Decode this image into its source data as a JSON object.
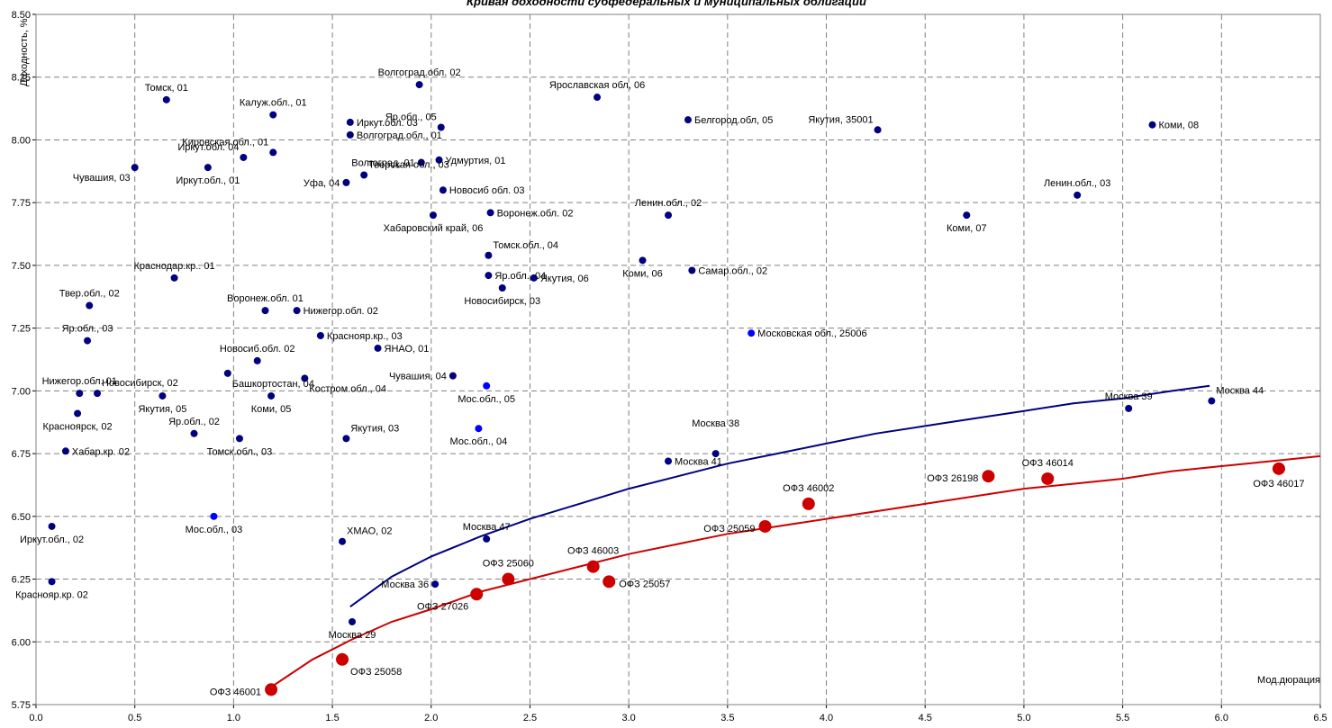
{
  "chart_data": {
    "type": "scatter",
    "title": "Кривая доходности субфедеральных и муниципальных облигаций",
    "ylabel": "Доходность, %",
    "xlabel": "Мод.дюрация",
    "xlim": [
      0,
      6.5
    ],
    "ylim": [
      5.75,
      8.5
    ],
    "x_ticks": [
      "0.0",
      "0.5",
      "1.0",
      "1.5",
      "2.0",
      "2.5",
      "3.0",
      "3.5",
      "4.0",
      "4.5",
      "5.0",
      "5.5",
      "6.0",
      "6.5"
    ],
    "y_ticks": [
      "5.75",
      "6.00",
      "6.25",
      "6.50",
      "6.75",
      "7.00",
      "7.25",
      "7.50",
      "7.75",
      "8.00",
      "8.25",
      "8.50"
    ],
    "grid": true,
    "colors": {
      "regional": "#000080",
      "moscow_region": "#0000ff",
      "ofz": "#cc0000",
      "regional_curve": "#000080",
      "ofz_curve": "#cc0000"
    },
    "series": [
      {
        "name": "regional",
        "points": [
          {
            "x": 0.66,
            "y": 8.16,
            "label": "Томск, 01",
            "pos": "above"
          },
          {
            "x": 1.94,
            "y": 8.22,
            "label": "Волгоград.обл. 02",
            "pos": "above"
          },
          {
            "x": 2.84,
            "y": 8.17,
            "label": "Ярославская обл, 06",
            "pos": "above"
          },
          {
            "x": 1.2,
            "y": 8.1,
            "label": "Калуж.обл., 01",
            "pos": "above"
          },
          {
            "x": 1.59,
            "y": 8.07,
            "label": "Иркут.обл. 03",
            "pos": "right"
          },
          {
            "x": 2.05,
            "y": 8.05,
            "label": "Яр.обл., 05",
            "pos": "aboveleft"
          },
          {
            "x": 3.3,
            "y": 8.08,
            "label": "Белгород.обл, 05",
            "pos": "right"
          },
          {
            "x": 4.26,
            "y": 8.04,
            "label": "Якутия, 35001",
            "pos": "aboveleft"
          },
          {
            "x": 5.65,
            "y": 8.06,
            "label": "Коми, 08",
            "pos": "right"
          },
          {
            "x": 1.59,
            "y": 8.02,
            "label": "Волгоград.обл., 01",
            "pos": "right"
          },
          {
            "x": 1.2,
            "y": 7.95,
            "label": "Кировская обл., 01",
            "pos": "aboveleft"
          },
          {
            "x": 1.05,
            "y": 7.93,
            "label": "Иркут.обл. 04",
            "pos": "aboveleft"
          },
          {
            "x": 0.5,
            "y": 7.89,
            "label": "Чувашия, 03",
            "pos": "belowleft"
          },
          {
            "x": 0.87,
            "y": 7.89,
            "label": "Иркут.обл., 01",
            "pos": "below"
          },
          {
            "x": 1.95,
            "y": 7.91,
            "label": "Волгоград, 01",
            "pos": "left"
          },
          {
            "x": 2.04,
            "y": 7.92,
            "label": "Удмуртия, 01",
            "pos": "right"
          },
          {
            "x": 1.66,
            "y": 7.86,
            "label": "Тверская обл., 03",
            "pos": "aboveright"
          },
          {
            "x": 1.57,
            "y": 7.83,
            "label": "Уфа, 04",
            "pos": "left"
          },
          {
            "x": 2.06,
            "y": 7.8,
            "label": "Новосиб обл. 03",
            "pos": "right"
          },
          {
            "x": 5.27,
            "y": 7.78,
            "label": "Ленин.обл., 03",
            "pos": "above"
          },
          {
            "x": 2.3,
            "y": 7.71,
            "label": "Воронеж.обл. 02",
            "pos": "right"
          },
          {
            "x": 2.01,
            "y": 7.7,
            "label": "Хабаровский край, 06",
            "pos": "below"
          },
          {
            "x": 3.2,
            "y": 7.7,
            "label": "Ленин.обл., 02",
            "pos": "above"
          },
          {
            "x": 4.71,
            "y": 7.7,
            "label": "Коми, 07",
            "pos": "below"
          },
          {
            "x": 2.29,
            "y": 7.54,
            "label": "Томск.обл., 04",
            "pos": "aboveright"
          },
          {
            "x": 3.07,
            "y": 7.52,
            "label": "Коми, 06",
            "pos": "below"
          },
          {
            "x": 3.32,
            "y": 7.48,
            "label": "Самар.обл., 02",
            "pos": "right"
          },
          {
            "x": 2.29,
            "y": 7.46,
            "label": "Яр.обл., 04",
            "pos": "right"
          },
          {
            "x": 2.52,
            "y": 7.45,
            "label": "Якутия, 06",
            "pos": "right"
          },
          {
            "x": 2.36,
            "y": 7.41,
            "label": "Новосибирск, 03",
            "pos": "below"
          },
          {
            "x": 0.7,
            "y": 7.45,
            "label": "Краснодар.кр.. 01",
            "pos": "above"
          },
          {
            "x": 0.27,
            "y": 7.34,
            "label": "Твер.обл., 02",
            "pos": "above"
          },
          {
            "x": 1.16,
            "y": 7.32,
            "label": "Воронеж.обл. 01",
            "pos": "above"
          },
          {
            "x": 1.32,
            "y": 7.32,
            "label": "Нижегор.обл. 02",
            "pos": "right"
          },
          {
            "x": 0.26,
            "y": 7.2,
            "label": "Яр.обл., 03",
            "pos": "above"
          },
          {
            "x": 1.44,
            "y": 7.22,
            "label": "Краснояр.кр., 03",
            "pos": "right"
          },
          {
            "x": 1.73,
            "y": 7.17,
            "label": "ЯНАО, 01",
            "pos": "right"
          },
          {
            "x": 1.12,
            "y": 7.12,
            "label": "Новосиб.обл. 02",
            "pos": "above"
          },
          {
            "x": 0.97,
            "y": 7.07,
            "label": "Башкортостан, 04",
            "pos": "belowright"
          },
          {
            "x": 1.36,
            "y": 7.05,
            "label": "Костром.обл., 04",
            "pos": "belowright"
          },
          {
            "x": 2.11,
            "y": 7.06,
            "label": "Чувашия, 04",
            "pos": "left"
          },
          {
            "x": 0.22,
            "y": 6.99,
            "label": "Нижегор.обл. 01",
            "pos": "above"
          },
          {
            "x": 0.31,
            "y": 6.99,
            "label": "Новосибирск, 02",
            "pos": "aboveright"
          },
          {
            "x": 0.64,
            "y": 6.98,
            "label": "Якутия, 05",
            "pos": "below"
          },
          {
            "x": 1.19,
            "y": 6.98,
            "label": "Коми, 05",
            "pos": "below"
          },
          {
            "x": 0.21,
            "y": 6.91,
            "label": "Красноярск, 02",
            "pos": "below"
          },
          {
            "x": 0.8,
            "y": 6.83,
            "label": "Яр.обл., 02",
            "pos": "above"
          },
          {
            "x": 1.03,
            "y": 6.81,
            "label": "Томск.обл., 03",
            "pos": "below"
          },
          {
            "x": 1.57,
            "y": 6.81,
            "label": "Якутия, 03",
            "pos": "aboveright"
          },
          {
            "x": 0.15,
            "y": 6.76,
            "label": "Хабар.кр. 02",
            "pos": "right"
          },
          {
            "x": 3.2,
            "y": 6.72,
            "label": "Москва 41",
            "pos": "right"
          },
          {
            "x": 3.44,
            "y": 6.75,
            "label": "Москва 38",
            "pos": "abovefar"
          },
          {
            "x": 5.53,
            "y": 6.93,
            "label": "Москва 39",
            "pos": "above"
          },
          {
            "x": 5.95,
            "y": 6.96,
            "label": "Москва 44",
            "pos": "aboveright"
          },
          {
            "x": 0.08,
            "y": 6.46,
            "label": "Иркут.обл., 02",
            "pos": "below"
          },
          {
            "x": 1.55,
            "y": 6.4,
            "label": "ХМАО, 02",
            "pos": "aboveright"
          },
          {
            "x": 2.28,
            "y": 6.41,
            "label": "Москва 47",
            "pos": "above"
          },
          {
            "x": 0.08,
            "y": 6.24,
            "label": "Краснояр.кр. 02",
            "pos": "below"
          },
          {
            "x": 2.02,
            "y": 6.23,
            "label": "Москва 36",
            "pos": "left"
          },
          {
            "x": 1.6,
            "y": 6.08,
            "label": "Москва 29",
            "pos": "below"
          }
        ]
      },
      {
        "name": "moscow_region",
        "points": [
          {
            "x": 3.62,
            "y": 7.23,
            "label": "Московская обл., 25006",
            "pos": "right"
          },
          {
            "x": 2.28,
            "y": 7.02,
            "label": "Мос.обл., 05",
            "pos": "below"
          },
          {
            "x": 2.24,
            "y": 6.85,
            "label": "Мос.обл., 04",
            "pos": "below"
          },
          {
            "x": 0.9,
            "y": 6.5,
            "label": "Мос.обл., 03",
            "pos": "below"
          }
        ]
      },
      {
        "name": "ofz",
        "points": [
          {
            "x": 1.19,
            "y": 5.81,
            "label": "ОФЗ 46001",
            "pos": "left"
          },
          {
            "x": 1.55,
            "y": 5.93,
            "label": "ОФЗ 25058",
            "pos": "belowright"
          },
          {
            "x": 2.23,
            "y": 6.19,
            "label": "ОФЗ 27026",
            "pos": "belowleft"
          },
          {
            "x": 2.39,
            "y": 6.25,
            "label": "ОФЗ 25060",
            "pos": "above"
          },
          {
            "x": 2.82,
            "y": 6.3,
            "label": "ОФЗ 46003",
            "pos": "above"
          },
          {
            "x": 2.9,
            "y": 6.24,
            "label": "ОФЗ 25057",
            "pos": "right"
          },
          {
            "x": 3.69,
            "y": 6.46,
            "label": "ОФЗ 25059",
            "pos": "left"
          },
          {
            "x": 3.91,
            "y": 6.55,
            "label": "ОФЗ 46002",
            "pos": "above"
          },
          {
            "x": 4.82,
            "y": 6.66,
            "label": "ОФЗ 26198",
            "pos": "left"
          },
          {
            "x": 5.12,
            "y": 6.65,
            "label": "ОФЗ 46014",
            "pos": "above"
          },
          {
            "x": 6.29,
            "y": 6.69,
            "label": "ОФЗ 46017",
            "pos": "below"
          }
        ]
      },
      {
        "name": "regional_curve",
        "type": "line",
        "points": [
          {
            "x": 1.59,
            "y": 6.14
          },
          {
            "x": 1.8,
            "y": 6.26
          },
          {
            "x": 2.0,
            "y": 6.34
          },
          {
            "x": 2.25,
            "y": 6.42
          },
          {
            "x": 2.5,
            "y": 6.49
          },
          {
            "x": 2.75,
            "y": 6.55
          },
          {
            "x": 3.0,
            "y": 6.61
          },
          {
            "x": 3.25,
            "y": 6.66
          },
          {
            "x": 3.5,
            "y": 6.71
          },
          {
            "x": 3.75,
            "y": 6.75
          },
          {
            "x": 4.0,
            "y": 6.79
          },
          {
            "x": 4.25,
            "y": 6.83
          },
          {
            "x": 4.5,
            "y": 6.86
          },
          {
            "x": 4.75,
            "y": 6.89
          },
          {
            "x": 5.0,
            "y": 6.92
          },
          {
            "x": 5.25,
            "y": 6.95
          },
          {
            "x": 5.5,
            "y": 6.97
          },
          {
            "x": 5.75,
            "y": 7.0
          },
          {
            "x": 5.94,
            "y": 7.02
          }
        ]
      },
      {
        "name": "ofz_curve",
        "type": "line",
        "points": [
          {
            "x": 1.19,
            "y": 5.82
          },
          {
            "x": 1.4,
            "y": 5.93
          },
          {
            "x": 1.6,
            "y": 6.01
          },
          {
            "x": 1.8,
            "y": 6.08
          },
          {
            "x": 2.0,
            "y": 6.13
          },
          {
            "x": 2.25,
            "y": 6.2
          },
          {
            "x": 2.5,
            "y": 6.25
          },
          {
            "x": 2.75,
            "y": 6.3
          },
          {
            "x": 3.0,
            "y": 6.35
          },
          {
            "x": 3.25,
            "y": 6.39
          },
          {
            "x": 3.5,
            "y": 6.43
          },
          {
            "x": 3.75,
            "y": 6.46
          },
          {
            "x": 4.0,
            "y": 6.49
          },
          {
            "x": 4.25,
            "y": 6.52
          },
          {
            "x": 4.5,
            "y": 6.55
          },
          {
            "x": 4.75,
            "y": 6.58
          },
          {
            "x": 5.0,
            "y": 6.61
          },
          {
            "x": 5.25,
            "y": 6.63
          },
          {
            "x": 5.5,
            "y": 6.65
          },
          {
            "x": 5.75,
            "y": 6.68
          },
          {
            "x": 6.0,
            "y": 6.7
          },
          {
            "x": 6.25,
            "y": 6.72
          },
          {
            "x": 6.5,
            "y": 6.74
          }
        ]
      }
    ]
  }
}
